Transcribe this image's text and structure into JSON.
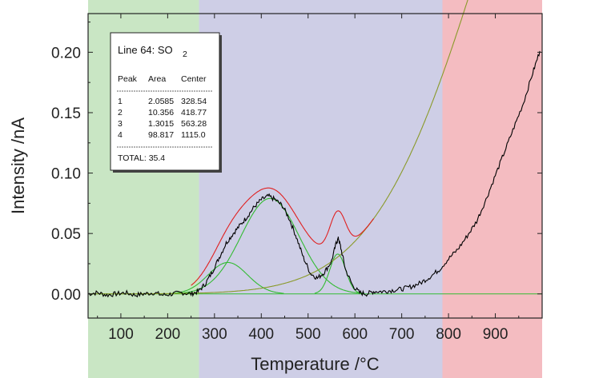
{
  "chart_data": {
    "type": "line",
    "title": "",
    "xlabel": "Temperature  /°C",
    "ylabel": "Intensity  /nA",
    "xlim": [
      30,
      1000
    ],
    "ylim": [
      -0.02,
      0.232
    ],
    "xticks": [
      100,
      200,
      300,
      400,
      500,
      600,
      700,
      800,
      900
    ],
    "yticks": [
      0.0,
      0.05,
      0.1,
      0.15,
      0.2
    ],
    "ytick_labels": [
      "0.00",
      "0.05",
      "0.10",
      "0.15",
      "0.20"
    ],
    "grid": false,
    "regions": [
      {
        "from": 30,
        "to": 267,
        "color": "#c9e6c4"
      },
      {
        "from": 267,
        "to": 787,
        "color": "#ceceE6"
      },
      {
        "from": 787,
        "to": 1000,
        "color": "#f4bcc1"
      }
    ],
    "colors": {
      "measured": "#000000",
      "fit_sum": "#e02020",
      "fit_peaks": "#33bb33",
      "baseline": "#33bb33",
      "background_fit": "#8a9a2a"
    },
    "legend": {
      "placement": "top-left",
      "title_main": "Line 64: SO",
      "title_sub": "2",
      "headers": [
        "Peak",
        "Area",
        "Center"
      ],
      "rows": [
        {
          "peak": "1",
          "area": "2.0585",
          "center": "328.54"
        },
        {
          "peak": "2",
          "area": "10.356",
          "center": "418.77"
        },
        {
          "peak": "3",
          "area": "1.3015",
          "center": "563.28"
        },
        {
          "peak": "4",
          "area": "98.817",
          "center": "1115.0"
        }
      ],
      "total": "TOTAL: 35.4"
    },
    "peaks": [
      {
        "center": 328.54,
        "height": 0.026,
        "sigma": 42
      },
      {
        "center": 418.77,
        "height": 0.079,
        "sigma": 62
      },
      {
        "center": 563.28,
        "height": 0.033,
        "sigma": 17
      },
      {
        "center": 1115.0,
        "height": 0.48,
        "sigma": 235
      }
    ],
    "measured_series": {
      "x": [
        30,
        50,
        70,
        90,
        110,
        130,
        150,
        170,
        190,
        210,
        230,
        250,
        265,
        280,
        295,
        310,
        325,
        340,
        355,
        370,
        385,
        400,
        415,
        430,
        445,
        460,
        475,
        490,
        505,
        520,
        535,
        550,
        560,
        565,
        570,
        580,
        595,
        610,
        625,
        640,
        660,
        680,
        700,
        720,
        740,
        760,
        780,
        800,
        820,
        840,
        860,
        880,
        900,
        920,
        940,
        960,
        980,
        995
      ],
      "y": [
        0.0,
        0.001,
        -0.001,
        0.0,
        0.001,
        -0.001,
        0.0,
        0.001,
        -0.001,
        0.0,
        0.001,
        0.0,
        0.002,
        0.008,
        0.018,
        0.03,
        0.042,
        0.05,
        0.057,
        0.064,
        0.072,
        0.078,
        0.081,
        0.078,
        0.073,
        0.062,
        0.047,
        0.03,
        0.017,
        0.013,
        0.018,
        0.027,
        0.042,
        0.046,
        0.038,
        0.02,
        0.007,
        0.001,
        0.0,
        0.002,
        0.002,
        0.003,
        0.004,
        0.006,
        0.009,
        0.014,
        0.02,
        0.029,
        0.037,
        0.048,
        0.06,
        0.078,
        0.098,
        0.118,
        0.138,
        0.158,
        0.183,
        0.201
      ]
    }
  }
}
